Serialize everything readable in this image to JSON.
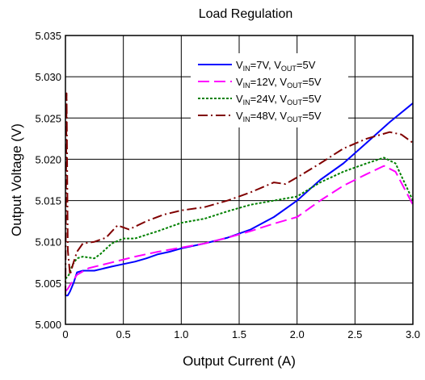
{
  "chart_data": {
    "type": "line",
    "title": "Load Regulation",
    "xlabel": "Output Current (A)",
    "ylabel": "Output Voltage (V)",
    "xlim": [
      0,
      3.0
    ],
    "ylim": [
      5.0,
      5.035
    ],
    "x_ticks": [
      "0",
      "0.5",
      "1.0",
      "1.5",
      "2.0",
      "2.5",
      "3.0"
    ],
    "y_ticks": [
      "5.000",
      "5.005",
      "5.010",
      "5.015",
      "5.020",
      "5.025",
      "5.030",
      "5.035"
    ],
    "grid": true,
    "legend_position": "top-right",
    "series": [
      {
        "name_main": "V",
        "name_sub1": "IN",
        "name_mid": "=7V, V",
        "name_sub2": "OUT",
        "name_end": "=5V",
        "color": "#0000ff",
        "dash": "solid",
        "points": [
          [
            0,
            5.0035
          ],
          [
            0.02,
            5.0035
          ],
          [
            0.04,
            5.004
          ],
          [
            0.07,
            5.005
          ],
          [
            0.1,
            5.0063
          ],
          [
            0.15,
            5.0065
          ],
          [
            0.25,
            5.0065
          ],
          [
            0.4,
            5.007
          ],
          [
            0.5,
            5.0073
          ],
          [
            0.6,
            5.0076
          ],
          [
            0.7,
            5.008
          ],
          [
            0.8,
            5.0085
          ],
          [
            0.9,
            5.0088
          ],
          [
            1.0,
            5.0092
          ],
          [
            1.2,
            5.0098
          ],
          [
            1.4,
            5.0105
          ],
          [
            1.6,
            5.0115
          ],
          [
            1.8,
            5.013
          ],
          [
            2.0,
            5.015
          ],
          [
            2.2,
            5.0175
          ],
          [
            2.4,
            5.0195
          ],
          [
            2.6,
            5.022
          ],
          [
            2.8,
            5.0245
          ],
          [
            3.0,
            5.0268
          ]
        ]
      },
      {
        "name_main": "V",
        "name_sub1": "IN",
        "name_mid": "=12V, V",
        "name_sub2": "OUT",
        "name_end": "=5V",
        "color": "#ff00ff",
        "dash": "long",
        "points": [
          [
            0,
            5.004
          ],
          [
            0.02,
            5.0043
          ],
          [
            0.05,
            5.005
          ],
          [
            0.1,
            5.006
          ],
          [
            0.2,
            5.0068
          ],
          [
            0.4,
            5.0075
          ],
          [
            0.6,
            5.0082
          ],
          [
            0.8,
            5.0088
          ],
          [
            1.0,
            5.0093
          ],
          [
            1.2,
            5.0098
          ],
          [
            1.4,
            5.0105
          ],
          [
            1.6,
            5.0113
          ],
          [
            1.8,
            5.0122
          ],
          [
            2.0,
            5.013
          ],
          [
            2.2,
            5.015
          ],
          [
            2.4,
            5.0168
          ],
          [
            2.6,
            5.0182
          ],
          [
            2.75,
            5.0192
          ],
          [
            2.85,
            5.0185
          ],
          [
            3.0,
            5.0145
          ]
        ]
      },
      {
        "name_main": "V",
        "name_sub1": "IN",
        "name_mid": "=24V, V",
        "name_sub2": "OUT",
        "name_end": "=5V",
        "color": "#008000",
        "dash": "dot",
        "points": [
          [
            0,
            5.0055
          ],
          [
            0.03,
            5.006
          ],
          [
            0.06,
            5.0072
          ],
          [
            0.1,
            5.008
          ],
          [
            0.15,
            5.0082
          ],
          [
            0.25,
            5.008
          ],
          [
            0.3,
            5.0085
          ],
          [
            0.4,
            5.0098
          ],
          [
            0.5,
            5.0104
          ],
          [
            0.6,
            5.0104
          ],
          [
            0.8,
            5.0113
          ],
          [
            1.0,
            5.0123
          ],
          [
            1.2,
            5.0128
          ],
          [
            1.4,
            5.0137
          ],
          [
            1.6,
            5.0145
          ],
          [
            1.8,
            5.015
          ],
          [
            2.0,
            5.0155
          ],
          [
            2.2,
            5.0172
          ],
          [
            2.4,
            5.0185
          ],
          [
            2.6,
            5.0195
          ],
          [
            2.75,
            5.0202
          ],
          [
            2.85,
            5.0195
          ],
          [
            3.0,
            5.015
          ]
        ]
      },
      {
        "name_main": "V",
        "name_sub1": "IN",
        "name_mid": "=48V, V",
        "name_sub2": "OUT",
        "name_end": "=5V",
        "color": "#800000",
        "dash": "dashdot",
        "points": [
          [
            0,
            5.0035
          ],
          [
            0.01,
            5.028
          ],
          [
            0.02,
            5.009
          ],
          [
            0.04,
            5.006
          ],
          [
            0.07,
            5.0075
          ],
          [
            0.1,
            5.0088
          ],
          [
            0.15,
            5.0098
          ],
          [
            0.25,
            5.01
          ],
          [
            0.35,
            5.0105
          ],
          [
            0.45,
            5.012
          ],
          [
            0.55,
            5.0115
          ],
          [
            0.7,
            5.0125
          ],
          [
            0.85,
            5.0133
          ],
          [
            1.0,
            5.0138
          ],
          [
            1.2,
            5.0142
          ],
          [
            1.4,
            5.015
          ],
          [
            1.6,
            5.016
          ],
          [
            1.8,
            5.0172
          ],
          [
            1.9,
            5.017
          ],
          [
            2.0,
            5.0178
          ],
          [
            2.2,
            5.0195
          ],
          [
            2.4,
            5.0213
          ],
          [
            2.6,
            5.0225
          ],
          [
            2.8,
            5.0233
          ],
          [
            2.9,
            5.023
          ],
          [
            3.0,
            5.022
          ]
        ]
      }
    ]
  }
}
